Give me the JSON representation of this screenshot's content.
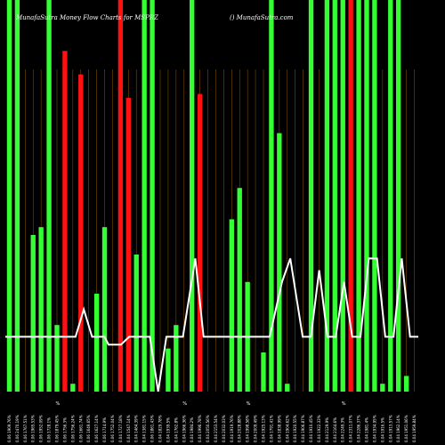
{
  "header": {
    "title": "MunafaSutra  Money Flow  Charts for MSPRZ",
    "credit": "() MunafaSutra.com"
  },
  "colors": {
    "background": "#000000",
    "up_bar": "#33ff33",
    "down_bar": "#ff1111",
    "grid": "#7a4a00",
    "line": "#ffffff"
  },
  "chart_data": {
    "type": "bar",
    "title": "MunafaSutra  Money Flow  Charts for MSPRZ",
    "credit": "() MunafaSutra.com",
    "ylim": [
      0,
      100
    ],
    "grid": true,
    "legend": "none",
    "x_labels": [
      "0.06 1909.76%",
      "0.06 2470.19%",
      "0.06 1767.51%",
      "0.06 1965.53%",
      "0.06 1952.09%",
      "0.06 1728.1%",
      "0.06 1879.45%",
      "0.06 1756.3%",
      "0.06 1756.24%",
      "0.06 1661.74%",
      "0.06 1649.65%",
      "0.06 1627.14%",
      "0.06 1714.9%",
      "0.06 1752.04%",
      "0.04 1727.18%",
      "0.04 1547.14%",
      "0.04 1464.39%",
      "0.04 1381.15%",
      "0.06 1861.43%",
      "0.04 1829.78%",
      "0.04 1939.5%",
      "0.04 1762.8%",
      "0.04 1966.36%",
      "0.04 1984.2%",
      "0.04 1996.78%",
      "0.04 2050.56%",
      "0.04 2153.54%",
      "0.04 2032.03%",
      "0.04 1919.76%",
      "0.04 2028.88%",
      "0.04 1998.58%",
      "0.04 2009.49%",
      "0.04 1925.13%",
      "0.04 1791.41%",
      "0.04 1838.99%",
      "0.04 1904.62%",
      "0.04 1920.55%",
      "0.04 1906.87%",
      "0.04 1910.45%",
      "0.04 1922.33%",
      "0.04 2129.9%",
      "0.04 2164.6%",
      "0.04 2249.3%",
      "0.04 2311.07%",
      "0.04 2286.37%",
      "0.04 1981.4%",
      "0.04 1934.95%",
      "0.04 1916.5%",
      "0.04 1913.57%",
      "0.04 1962.14%",
      "0.04 1951.06%",
      "0.04 1959.84%"
    ],
    "separators": [
      "%",
      "%",
      "%",
      "%"
    ],
    "bars": [
      {
        "value": 100,
        "dir": "up"
      },
      {
        "value": 100,
        "dir": "up"
      },
      {
        "value": 0,
        "dir": "up"
      },
      {
        "value": 40,
        "dir": "up"
      },
      {
        "value": 42,
        "dir": "up"
      },
      {
        "value": 100,
        "dir": "up"
      },
      {
        "value": 17,
        "dir": "up"
      },
      {
        "value": 87,
        "dir": "down"
      },
      {
        "value": 2,
        "dir": "up"
      },
      {
        "value": 81,
        "dir": "down"
      },
      {
        "value": 0,
        "dir": "up"
      },
      {
        "value": 25,
        "dir": "up"
      },
      {
        "value": 42,
        "dir": "up"
      },
      {
        "value": 0,
        "dir": "up"
      },
      {
        "value": 100,
        "dir": "down"
      },
      {
        "value": 75,
        "dir": "down"
      },
      {
        "value": 35,
        "dir": "up"
      },
      {
        "value": 100,
        "dir": "up"
      },
      {
        "value": 100,
        "dir": "up"
      },
      {
        "value": 0,
        "dir": "up"
      },
      {
        "value": 11,
        "dir": "up"
      },
      {
        "value": 17,
        "dir": "up"
      },
      {
        "value": 0,
        "dir": "up"
      },
      {
        "value": 100,
        "dir": "up"
      },
      {
        "value": 76,
        "dir": "down"
      },
      {
        "value": 0,
        "dir": "up"
      },
      {
        "value": 0,
        "dir": "up"
      },
      {
        "value": 0,
        "dir": "up"
      },
      {
        "value": 44,
        "dir": "up"
      },
      {
        "value": 52,
        "dir": "up"
      },
      {
        "value": 28,
        "dir": "up"
      },
      {
        "value": 0,
        "dir": "up"
      },
      {
        "value": 10,
        "dir": "up"
      },
      {
        "value": 100,
        "dir": "up"
      },
      {
        "value": 66,
        "dir": "up"
      },
      {
        "value": 2,
        "dir": "up"
      },
      {
        "value": 0,
        "dir": "up"
      },
      {
        "value": 0,
        "dir": "up"
      },
      {
        "value": 100,
        "dir": "up"
      },
      {
        "value": 0,
        "dir": "up"
      },
      {
        "value": 100,
        "dir": "up"
      },
      {
        "value": 100,
        "dir": "up"
      },
      {
        "value": 100,
        "dir": "up"
      },
      {
        "value": 100,
        "dir": "down"
      },
      {
        "value": 100,
        "dir": "up"
      },
      {
        "value": 100,
        "dir": "up"
      },
      {
        "value": 100,
        "dir": "up"
      },
      {
        "value": 2,
        "dir": "up"
      },
      {
        "value": 100,
        "dir": "up"
      },
      {
        "value": 100,
        "dir": "up"
      },
      {
        "value": 4,
        "dir": "up"
      },
      {
        "value": 0,
        "dir": "up"
      }
    ],
    "series": [
      {
        "type": "line",
        "values": [
          [
            0,
            0
          ],
          [
            1,
            0
          ],
          [
            2,
            0
          ],
          [
            3,
            0
          ],
          [
            4,
            0
          ],
          [
            5,
            0
          ],
          [
            6,
            0
          ],
          [
            7,
            0
          ],
          [
            8,
            0
          ],
          [
            9,
            0
          ],
          [
            10,
            0
          ],
          [
            11,
            0
          ],
          [
            12,
            0
          ],
          [
            13,
            0
          ],
          [
            14,
            0
          ],
          [
            15,
            0
          ],
          [
            16,
            0
          ],
          [
            17,
            0
          ],
          [
            18,
            0
          ],
          [
            19,
            0
          ],
          [
            20,
            0
          ],
          [
            21,
            0
          ],
          [
            22,
            0
          ],
          [
            23,
            0
          ],
          [
            24,
            0
          ],
          [
            25,
            0
          ],
          [
            26,
            0
          ],
          [
            27,
            0
          ],
          [
            28,
            0
          ],
          [
            29,
            0
          ],
          [
            30,
            0
          ],
          [
            31,
            0
          ],
          [
            32,
            0
          ],
          [
            33,
            0
          ],
          [
            34,
            0
          ],
          [
            35,
            0
          ],
          [
            36,
            0
          ],
          [
            37,
            0
          ],
          [
            38,
            0
          ],
          [
            39,
            0
          ],
          [
            40,
            0
          ],
          [
            41,
            0
          ],
          [
            42,
            0
          ],
          [
            43,
            0
          ],
          [
            44,
            0
          ],
          [
            45,
            0
          ],
          [
            46,
            0
          ],
          [
            47,
            0
          ],
          [
            48,
            0
          ],
          [
            49,
            0
          ],
          [
            50,
            0
          ],
          [
            51,
            0
          ],
          [
            52,
            0
          ]
        ]
      }
    ],
    "line": [
      [
        0,
        14
      ],
      [
        3,
        14
      ],
      [
        6,
        14
      ],
      [
        8,
        14
      ],
      [
        9,
        14
      ],
      [
        10,
        14
      ],
      [
        12,
        14
      ],
      [
        14,
        14
      ],
      [
        17,
        14
      ],
      [
        19,
        21
      ],
      [
        21,
        14
      ],
      [
        24,
        14
      ],
      [
        25,
        12
      ],
      [
        28,
        12
      ],
      [
        30,
        14
      ],
      [
        33,
        14
      ],
      [
        35,
        14
      ],
      [
        37,
        0
      ],
      [
        39,
        14
      ],
      [
        41,
        14
      ],
      [
        43,
        14
      ],
      [
        46,
        34
      ],
      [
        48,
        14
      ],
      [
        52,
        14
      ],
      [
        55,
        14
      ],
      [
        58,
        14
      ],
      [
        61,
        14
      ],
      [
        64,
        14
      ],
      [
        67,
        28
      ],
      [
        69,
        34
      ],
      [
        72,
        14
      ],
      [
        74,
        14
      ],
      [
        76,
        31
      ],
      [
        78,
        14
      ],
      [
        80,
        14
      ],
      [
        82,
        28
      ],
      [
        84,
        14
      ],
      [
        86,
        14
      ],
      [
        88,
        34
      ],
      [
        90,
        34
      ],
      [
        92,
        14
      ],
      [
        94,
        14
      ],
      [
        96,
        34
      ],
      [
        98,
        14
      ],
      [
        100,
        14
      ]
    ]
  }
}
